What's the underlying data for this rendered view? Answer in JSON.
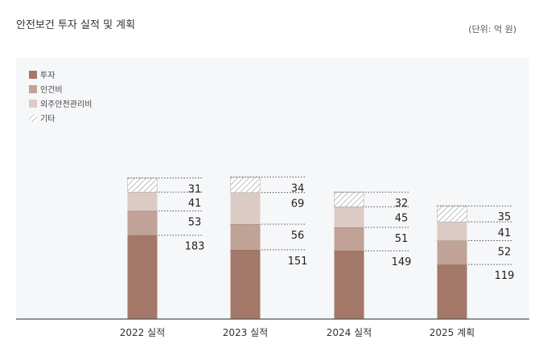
{
  "header": {
    "title": "안전보건 투자 실적 및 계획",
    "unit": "(단위: 억 원)"
  },
  "colors": {
    "투자": "#a47868",
    "인건비": "#c1a297",
    "외주안전관리비": "#dccbc4",
    "기타": "hatch",
    "axis": "#555555",
    "background": "#f6f7f9"
  },
  "chart_data": {
    "type": "bar",
    "stacked": true,
    "title": "안전보건 투자 실적 및 계획",
    "xlabel": "",
    "ylabel": "",
    "categories": [
      "2022 실적",
      "2023 실적",
      "2024 실적",
      "2025 계획"
    ],
    "series": [
      {
        "name": "투자",
        "values": [
          183,
          151,
          149,
          119
        ]
      },
      {
        "name": "인건비",
        "values": [
          53,
          56,
          51,
          52
        ]
      },
      {
        "name": "외주안전관리비",
        "values": [
          41,
          69,
          45,
          41
        ]
      },
      {
        "name": "기타",
        "values": [
          31,
          34,
          32,
          35
        ]
      }
    ],
    "legend_position": "top-left",
    "grid": false,
    "data_labels": true
  }
}
